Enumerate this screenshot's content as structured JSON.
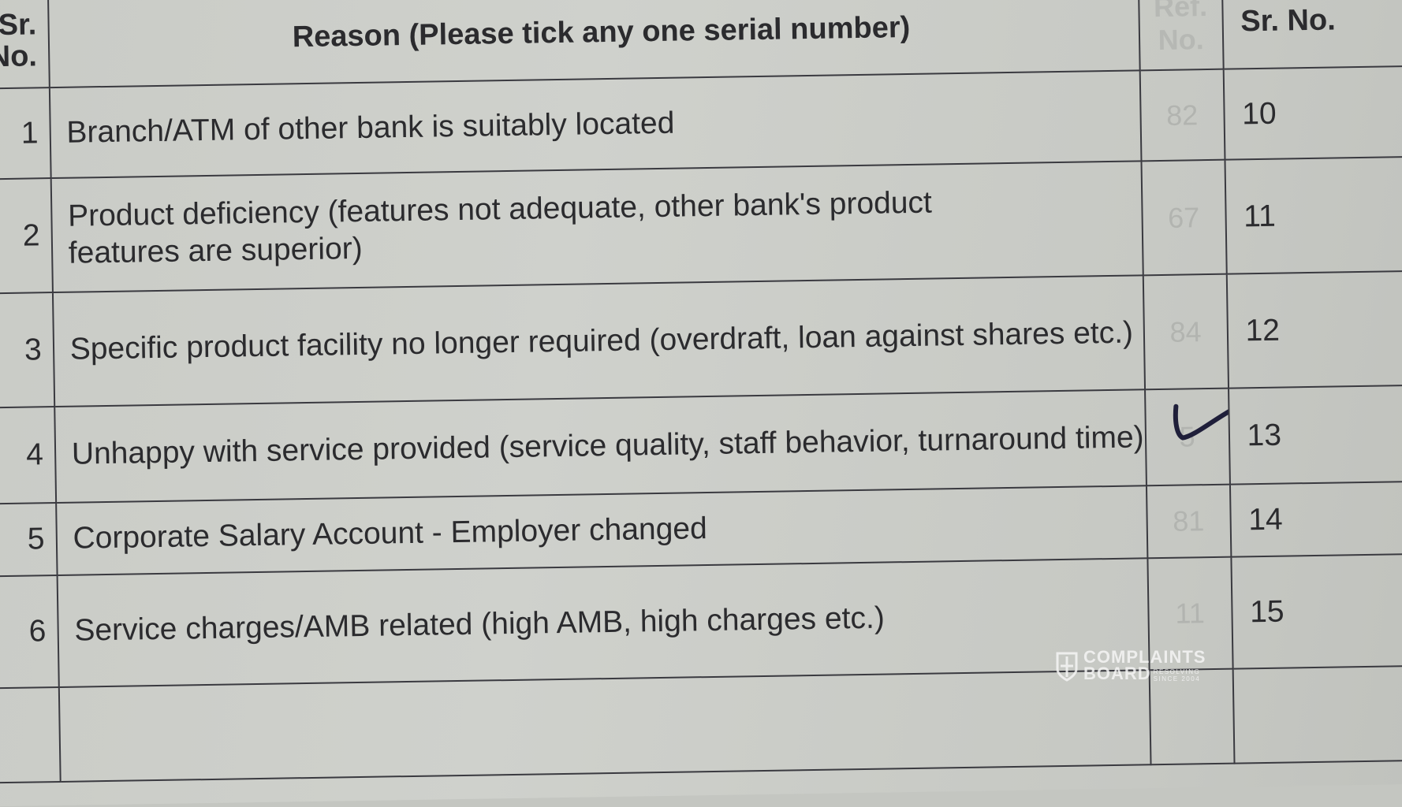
{
  "table": {
    "headers": {
      "sr_no": "Sr. No.",
      "reason": "Reason (Please tick any one serial number)",
      "ref_no": "Ref. No.",
      "sr_no_right": "Sr. No."
    },
    "rows": [
      {
        "sr": "1",
        "reason": "Branch/ATM of other bank is suitably located",
        "ref": "82",
        "sr_right": "10",
        "ticked": false
      },
      {
        "sr": "2",
        "reason": "Product deficiency (features not adequate, other bank's product features are superior)",
        "ref": "67",
        "sr_right": "11",
        "ticked": false
      },
      {
        "sr": "3",
        "reason": "Specific product facility no longer required (overdraft, loan against shares etc.)",
        "ref": "84",
        "sr_right": "12",
        "ticked": false
      },
      {
        "sr": "4",
        "reason": "Unhappy with service provided (service quality, staff behavior, turnaround time)",
        "ref": "5",
        "sr_right": "13",
        "ticked": true
      },
      {
        "sr": "5",
        "reason": "Corporate Salary Account - Employer changed",
        "ref": "81",
        "sr_right": "14",
        "ticked": false
      },
      {
        "sr": "6",
        "reason": "Service charges/AMB related (high AMB, high charges etc.)",
        "ref": "11",
        "sr_right": "15",
        "ticked": false
      }
    ]
  },
  "tick_color": "#1f1f3a",
  "watermark": {
    "line1": "COMPLAINTS",
    "line2": "BOARD",
    "tagline1": "RESOLVING",
    "tagline2": "SINCE 2004"
  }
}
